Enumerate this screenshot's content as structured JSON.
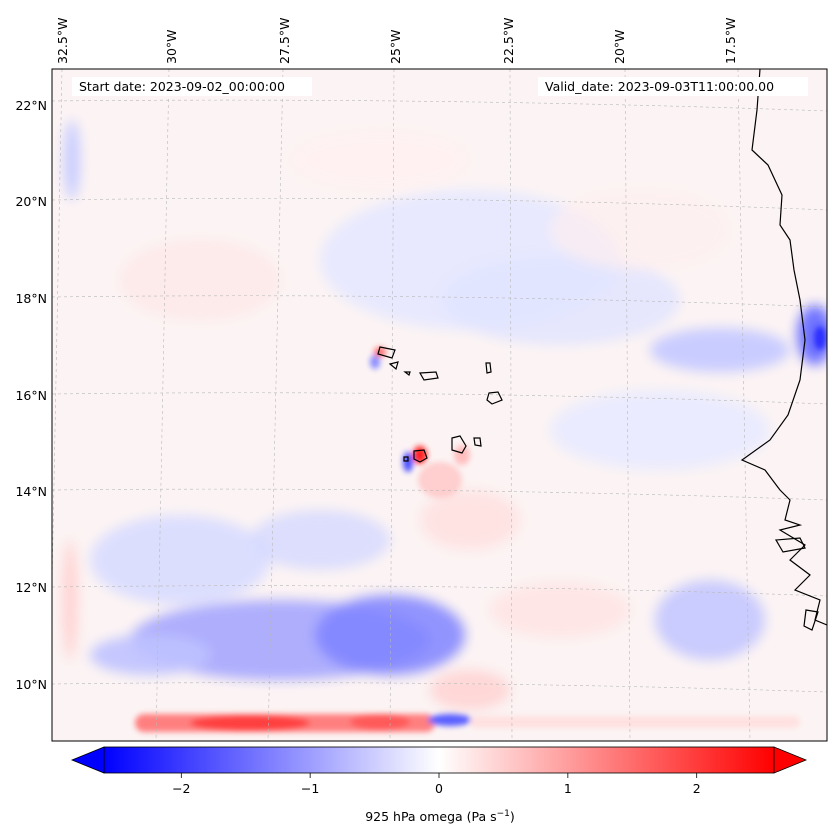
{
  "map": {
    "start_date_text": "Start date: 2023-09-02_00:00:00",
    "valid_date_text": "Valid_date: 2023-09-03T11:00:00.00",
    "longitude_labels": [
      "32.5°W",
      "30°W",
      "27.5°W",
      "25°W",
      "22.5°W",
      "20°W",
      "17.5°W"
    ],
    "latitude_labels": [
      "22°N",
      "20°N",
      "18°N",
      "16°N",
      "14°N",
      "12°N",
      "10°N"
    ],
    "colors": {
      "negative": "#0000ff",
      "zero": "#ffffff",
      "positive": "#ff0000",
      "coastline": "#000000",
      "gridline": "#b0b0b0"
    }
  },
  "colorbar": {
    "tick_labels": [
      "−2",
      "−1",
      "0",
      "1",
      "2"
    ],
    "label_main": "925 hPa omega (Pa s",
    "label_exp": "−1",
    "label_end": ")",
    "vmin": -2.6,
    "vmax": 2.6
  }
}
